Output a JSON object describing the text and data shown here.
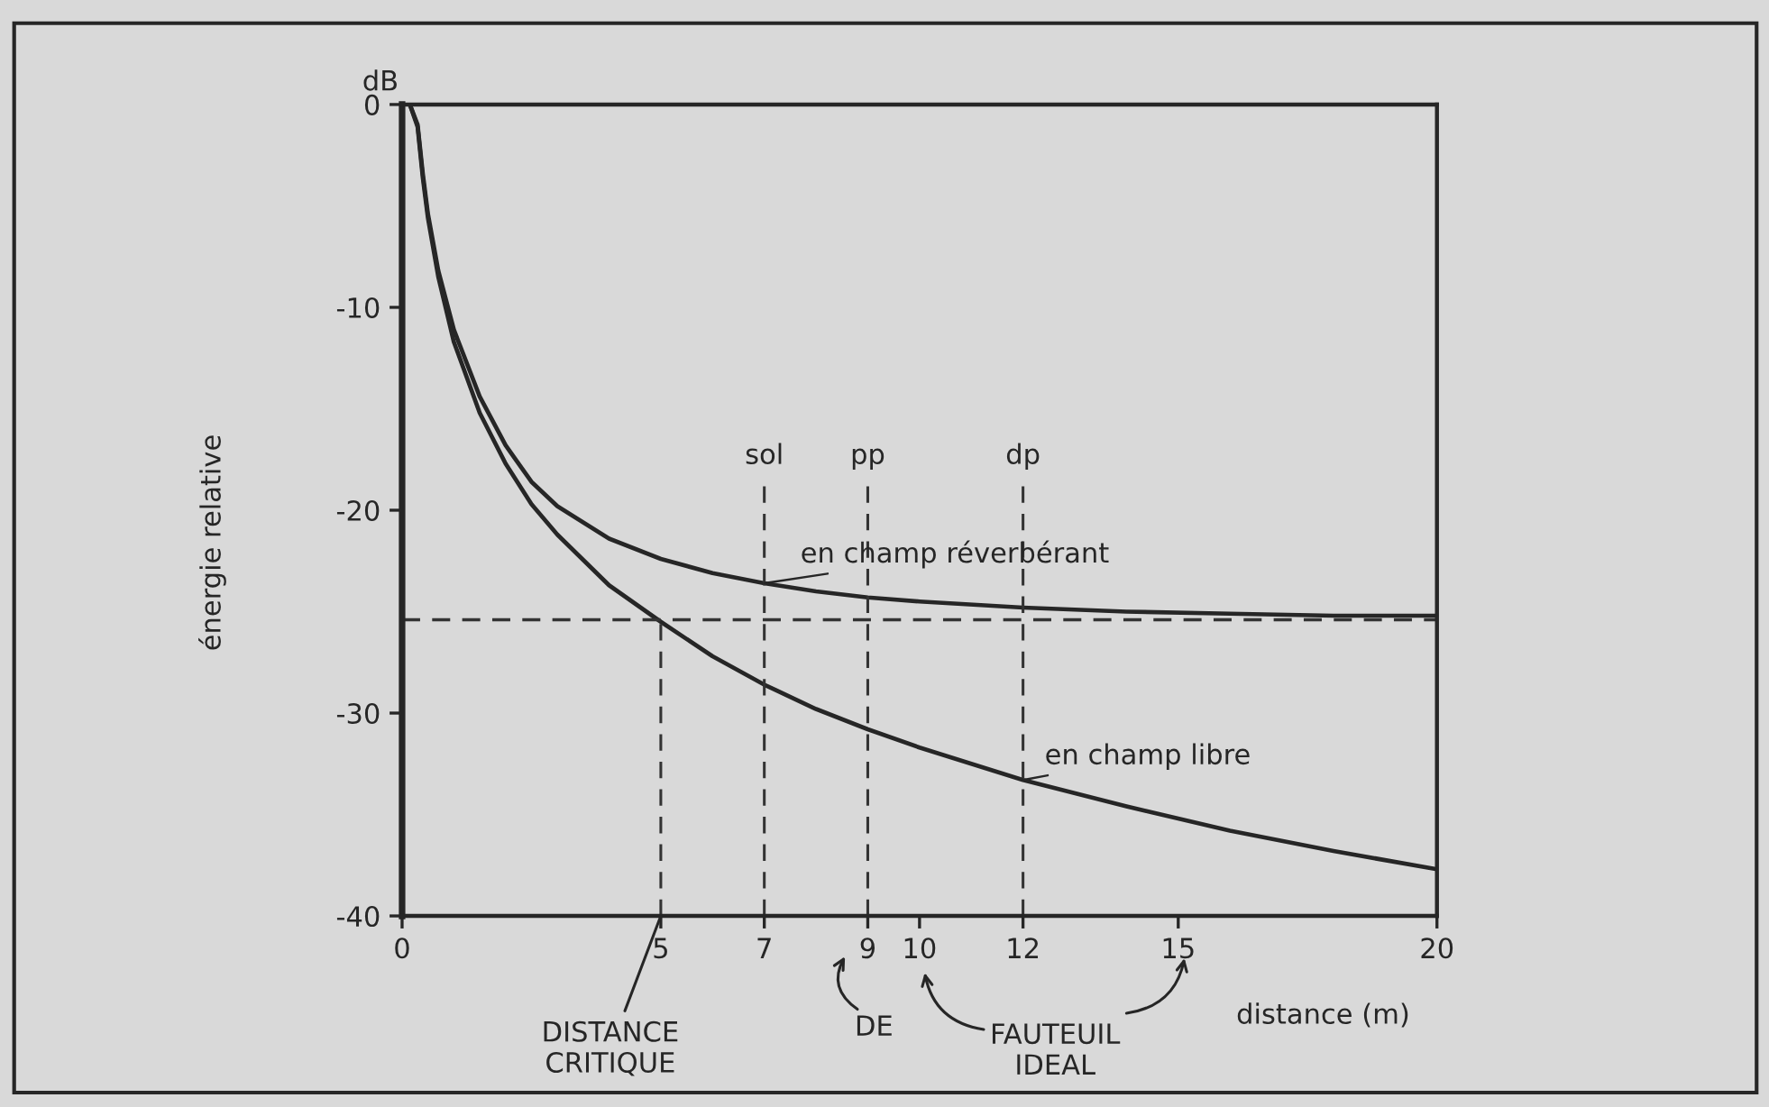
{
  "chart_data": {
    "type": "line",
    "xlabel": "distance (m)",
    "ylabel": "énergie relative",
    "xlim": [
      0,
      20
    ],
    "xticks": [
      0,
      5,
      7,
      9,
      10,
      12,
      15,
      20
    ],
    "ylim": [
      -40,
      0
    ],
    "yticks": [
      0,
      -10,
      -20,
      -30,
      -40
    ],
    "series": [
      {
        "name": "en champ réverbérant",
        "color": "#262626",
        "x": [
          0.15,
          0.3,
          0.4,
          0.5,
          0.7,
          1.0,
          1.5,
          2,
          2.5,
          3,
          4,
          5,
          6,
          7,
          8,
          9,
          10,
          12,
          14,
          16,
          18,
          20
        ],
        "values": [
          0,
          -1.0,
          -3.4,
          -5.4,
          -8.2,
          -11.1,
          -14.4,
          -16.8,
          -18.6,
          -19.8,
          -21.4,
          -22.4,
          -23.1,
          -23.6,
          -24.0,
          -24.3,
          -24.5,
          -24.8,
          -25.0,
          -25.1,
          -25.2,
          -25.2
        ]
      },
      {
        "name": "en champ libre",
        "color": "#262626",
        "x": [
          0.15,
          0.3,
          0.4,
          0.5,
          0.7,
          1.0,
          1.5,
          2,
          2.5,
          3,
          4,
          5,
          6,
          7,
          8,
          9,
          10,
          12,
          14,
          16,
          18,
          20
        ],
        "values": [
          0,
          -1.1,
          -3.6,
          -5.6,
          -8.5,
          -11.7,
          -15.2,
          -17.7,
          -19.7,
          -21.2,
          -23.7,
          -25.5,
          -27.2,
          -28.6,
          -29.8,
          -30.8,
          -31.7,
          -33.3,
          -34.6,
          -35.8,
          -36.8,
          -37.7
        ]
      }
    ],
    "ref_lines": [
      {
        "axis": "y",
        "value": -25.4,
        "color": "#333333",
        "line_style": "dashed"
      },
      {
        "axis": "x",
        "value": 5,
        "color": "#333333",
        "line_style": "dashed"
      },
      {
        "axis": "x",
        "value": 7,
        "label": "sol",
        "color": "#333333",
        "line_style": "dashed"
      },
      {
        "axis": "x",
        "value": 9,
        "label": "pp",
        "color": "#333333",
        "line_style": "dashed"
      },
      {
        "axis": "x",
        "value": 12,
        "label": "dp",
        "color": "#333333",
        "line_style": "dashed"
      }
    ],
    "annotations": [
      "dB",
      {
        "text": "DISTANCE\nCRITIQUE",
        "x": 5,
        "y": -40
      },
      "DE",
      "FAUTEUIL\nIDEAL"
    ]
  }
}
